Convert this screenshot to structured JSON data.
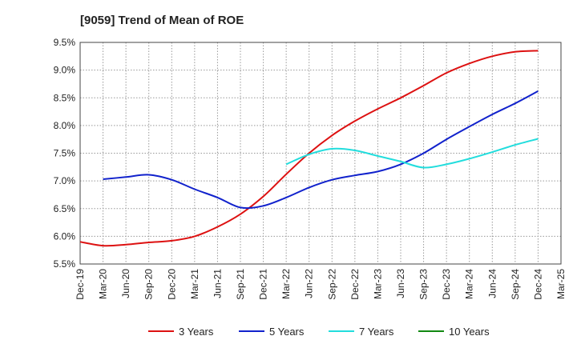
{
  "chart_data": {
    "type": "line",
    "title": "[9059]  Trend of Mean of ROE",
    "xlabel": "",
    "ylabel": "",
    "categories": [
      "Dec-19",
      "Mar-20",
      "Jun-20",
      "Sep-20",
      "Dec-20",
      "Mar-21",
      "Jun-21",
      "Sep-21",
      "Dec-21",
      "Mar-22",
      "Jun-22",
      "Sep-22",
      "Dec-22",
      "Mar-23",
      "Jun-23",
      "Sep-23",
      "Dec-23",
      "Mar-24",
      "Jun-24",
      "Sep-24",
      "Dec-24",
      "Mar-25"
    ],
    "y_tick_labels": [
      "5.5%",
      "6.0%",
      "6.5%",
      "7.0%",
      "7.5%",
      "8.0%",
      "8.5%",
      "9.0%",
      "9.5%"
    ],
    "ylim": [
      5.5,
      9.5
    ],
    "grid": true,
    "legend_position": "bottom",
    "series": [
      {
        "name": "3 Years",
        "color": "#dd1111",
        "values": [
          5.9,
          5.83,
          5.85,
          5.89,
          5.92,
          6.0,
          6.17,
          6.4,
          6.72,
          7.12,
          7.5,
          7.82,
          8.08,
          8.3,
          8.5,
          8.72,
          8.95,
          9.12,
          9.25,
          9.33,
          9.35,
          null
        ]
      },
      {
        "name": "5 Years",
        "color": "#1122cc",
        "values": [
          null,
          7.03,
          7.07,
          7.11,
          7.02,
          6.85,
          6.7,
          6.52,
          6.55,
          6.7,
          6.88,
          7.02,
          7.1,
          7.17,
          7.3,
          7.5,
          7.75,
          7.98,
          8.2,
          8.4,
          8.62,
          null
        ]
      },
      {
        "name": "7 Years",
        "color": "#22dddd",
        "values": [
          null,
          null,
          null,
          null,
          null,
          null,
          null,
          null,
          null,
          7.3,
          7.48,
          7.58,
          7.55,
          7.45,
          7.35,
          7.24,
          7.3,
          7.4,
          7.52,
          7.65,
          7.76,
          null
        ]
      },
      {
        "name": "10 Years",
        "color": "#118811",
        "values": [
          null,
          null,
          null,
          null,
          null,
          null,
          null,
          null,
          null,
          null,
          null,
          null,
          null,
          null,
          null,
          null,
          null,
          null,
          null,
          null,
          null,
          null
        ]
      }
    ]
  }
}
